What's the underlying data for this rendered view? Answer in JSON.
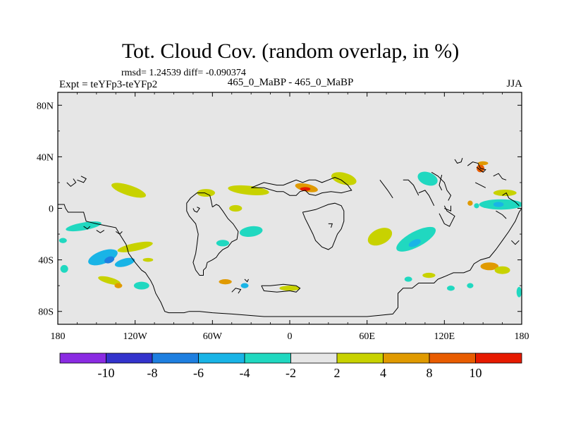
{
  "chart_data": {
    "type": "contour-map",
    "title": "Tot. Cloud Cov. (random overlap, in %)",
    "stats_line": "rmsd= 1.24539 diff= -0.090374",
    "left_label": "Expt = teYFp3-teYFp2",
    "center_label": "465_0_MaBP - 465_0_MaBP",
    "right_label": "JJA",
    "xlim": [
      -180,
      180
    ],
    "ylim": [
      -90,
      90
    ],
    "x_ticks": [
      {
        "value": -180,
        "label": "180"
      },
      {
        "value": -120,
        "label": "120W"
      },
      {
        "value": -60,
        "label": "60W"
      },
      {
        "value": 0,
        "label": "0"
      },
      {
        "value": 60,
        "label": "60E"
      },
      {
        "value": 120,
        "label": "120E"
      },
      {
        "value": 180,
        "label": "180"
      }
    ],
    "y_ticks": [
      {
        "value": 80,
        "label": "80N"
      },
      {
        "value": 40,
        "label": "40N"
      },
      {
        "value": 0,
        "label": "0"
      },
      {
        "value": -40,
        "label": "40S"
      },
      {
        "value": -80,
        "label": "80S"
      }
    ],
    "colorbar": {
      "colors": [
        "#8a2be2",
        "#3333cc",
        "#1e7fe0",
        "#19b4e6",
        "#20d8c0",
        "#e6e6e6",
        "#c8d200",
        "#e09a00",
        "#e85c00",
        "#e61a00"
      ],
      "boundaries": [
        "-10",
        "-8",
        "-6",
        "-4",
        "-2",
        "2",
        "4",
        "8",
        "10"
      ]
    },
    "background_color": "#e6e6e6",
    "anomalies": [
      {
        "lon": -145,
        "lat": -38,
        "rx": 12,
        "ry": 5,
        "rot": 20,
        "level": 3
      },
      {
        "lon": -140,
        "lat": -40,
        "rx": 4,
        "ry": 2.5,
        "rot": 20,
        "level": 2
      },
      {
        "lon": -128,
        "lat": -42,
        "rx": 8,
        "ry": 3,
        "rot": 15,
        "level": 3
      },
      {
        "lon": -160,
        "lat": -14,
        "rx": 14,
        "ry": 3,
        "rot": 10,
        "level": 4
      },
      {
        "lon": -125,
        "lat": 14,
        "rx": 14,
        "ry": 4,
        "rot": -18,
        "level": 6
      },
      {
        "lon": -120,
        "lat": -30,
        "rx": 14,
        "ry": 3,
        "rot": 12,
        "level": 6
      },
      {
        "lon": -140,
        "lat": -56,
        "rx": 9,
        "ry": 2.5,
        "rot": -15,
        "level": 6
      },
      {
        "lon": -133,
        "lat": -60,
        "rx": 3,
        "ry": 2,
        "rot": 0,
        "level": 7
      },
      {
        "lon": -115,
        "lat": -60,
        "rx": 6,
        "ry": 3,
        "rot": 0,
        "level": 4
      },
      {
        "lon": -65,
        "lat": 12,
        "rx": 7,
        "ry": 3,
        "rot": 0,
        "level": 6
      },
      {
        "lon": -32,
        "lat": 14,
        "rx": 16,
        "ry": 3.5,
        "rot": -6,
        "level": 6
      },
      {
        "lon": -42,
        "lat": 0,
        "rx": 5,
        "ry": 2.5,
        "rot": 0,
        "level": 6
      },
      {
        "lon": -30,
        "lat": -18,
        "rx": 9,
        "ry": 4,
        "rot": 8,
        "level": 4
      },
      {
        "lon": -52,
        "lat": -27,
        "rx": 5,
        "ry": 2.5,
        "rot": 0,
        "level": 4
      },
      {
        "lon": -50,
        "lat": -57,
        "rx": 5,
        "ry": 2,
        "rot": 0,
        "level": 7
      },
      {
        "lon": -35,
        "lat": -60,
        "rx": 3,
        "ry": 2,
        "rot": 0,
        "level": 3
      },
      {
        "lon": 0,
        "lat": -62,
        "rx": 8,
        "ry": 2,
        "rot": 0,
        "level": 6
      },
      {
        "lon": 13,
        "lat": 16,
        "rx": 9,
        "ry": 3,
        "rot": -12,
        "level": 7
      },
      {
        "lon": 12,
        "lat": 15,
        "rx": 4,
        "ry": 1.5,
        "rot": 0,
        "level": 9
      },
      {
        "lon": 42,
        "lat": 23,
        "rx": 10,
        "ry": 4.5,
        "rot": -15,
        "level": 6
      },
      {
        "lon": 70,
        "lat": -22,
        "rx": 10,
        "ry": 6,
        "rot": 25,
        "level": 6
      },
      {
        "lon": 98,
        "lat": -24,
        "rx": 17,
        "ry": 6,
        "rot": 28,
        "level": 4
      },
      {
        "lon": 97,
        "lat": -27,
        "rx": 5,
        "ry": 2.5,
        "rot": 25,
        "level": 3
      },
      {
        "lon": 107,
        "lat": 23,
        "rx": 8,
        "ry": 5,
        "rot": -20,
        "level": 4
      },
      {
        "lon": 164,
        "lat": 3,
        "rx": 17,
        "ry": 4,
        "rot": 0,
        "level": 4
      },
      {
        "lon": 162,
        "lat": 3,
        "rx": 4,
        "ry": 2,
        "rot": 0,
        "level": 3
      },
      {
        "lon": 167,
        "lat": 12,
        "rx": 9,
        "ry": 2.5,
        "rot": 0,
        "level": 6
      },
      {
        "lon": 140,
        "lat": 4,
        "rx": 2,
        "ry": 2,
        "rot": 0,
        "level": 7
      },
      {
        "lon": 145,
        "lat": 2,
        "rx": 2,
        "ry": 2,
        "rot": 0,
        "level": 4
      },
      {
        "lon": 148,
        "lat": 31,
        "rx": 3,
        "ry": 3,
        "rot": 0,
        "level": 8
      },
      {
        "lon": 150,
        "lat": 35,
        "rx": 4,
        "ry": 1.5,
        "rot": 0,
        "level": 7
      },
      {
        "lon": 155,
        "lat": -45,
        "rx": 7,
        "ry": 3,
        "rot": 0,
        "level": 7
      },
      {
        "lon": 165,
        "lat": -48,
        "rx": 6,
        "ry": 3,
        "rot": 0,
        "level": 6
      },
      {
        "lon": 108,
        "lat": -52,
        "rx": 5,
        "ry": 2,
        "rot": 0,
        "level": 6
      },
      {
        "lon": 125,
        "lat": -62,
        "rx": 3,
        "ry": 2,
        "rot": 0,
        "level": 4
      },
      {
        "lon": 140,
        "lat": -60,
        "rx": 2.5,
        "ry": 2,
        "rot": 0,
        "level": 4
      },
      {
        "lon": 178,
        "lat": -65,
        "rx": 2,
        "ry": 4,
        "rot": 0,
        "level": 4
      },
      {
        "lon": 92,
        "lat": -55,
        "rx": 3,
        "ry": 2,
        "rot": 0,
        "level": 4
      },
      {
        "lon": -176,
        "lat": -25,
        "rx": 3,
        "ry": 2,
        "rot": 0,
        "level": 4
      },
      {
        "lon": -175,
        "lat": -47,
        "rx": 3,
        "ry": 3,
        "rot": 0,
        "level": 4
      },
      {
        "lon": -110,
        "lat": -40,
        "rx": 4,
        "ry": 1.5,
        "rot": 0,
        "level": 6
      }
    ],
    "coastlines": [
      [
        [
          -173,
          20
        ],
        [
          -170,
          17
        ],
        [
          -166,
          20
        ],
        [
          -168,
          23
        ]
      ],
      [
        [
          -165,
          22
        ],
        [
          -160,
          20
        ],
        [
          -158,
          23
        ],
        [
          -162,
          25
        ]
      ],
      [
        [
          -180,
          3
        ],
        [
          -175,
          3
        ],
        [
          -174,
          0
        ],
        [
          -172,
          -3
        ],
        [
          -160,
          -3
        ],
        [
          -158,
          -10
        ],
        [
          -150,
          -12
        ],
        [
          -140,
          -14
        ],
        [
          -135,
          -15
        ],
        [
          -132,
          -20
        ],
        [
          -127,
          -28
        ],
        [
          -125,
          -35
        ],
        [
          -120,
          -42
        ],
        [
          -115,
          -48
        ],
        [
          -112,
          -50
        ],
        [
          -110,
          -53
        ],
        [
          -108,
          -56
        ],
        [
          -106,
          -60
        ],
        [
          -104,
          -66
        ],
        [
          -100,
          -73
        ],
        [
          -97,
          -80
        ],
        [
          -94,
          -81
        ],
        [
          -82,
          -81
        ],
        [
          -78,
          -80
        ],
        [
          -70,
          -80
        ],
        [
          -60,
          -81
        ],
        [
          -45,
          -82
        ],
        [
          -20,
          -84
        ],
        [
          0,
          -84
        ],
        [
          20,
          -84
        ],
        [
          40,
          -84
        ],
        [
          60,
          -84
        ],
        [
          70,
          -83
        ],
        [
          80,
          -82
        ],
        [
          84,
          -77
        ],
        [
          84,
          -66
        ],
        [
          88,
          -62
        ],
        [
          95,
          -62
        ],
        [
          100,
          -58
        ],
        [
          105,
          -58
        ],
        [
          112,
          -58
        ],
        [
          115,
          -55
        ],
        [
          120,
          -53
        ],
        [
          127,
          -50
        ],
        [
          135,
          -50
        ],
        [
          140,
          -48
        ],
        [
          143,
          -43
        ],
        [
          148,
          -40
        ],
        [
          155,
          -38
        ],
        [
          160,
          -32
        ],
        [
          165,
          -25
        ],
        [
          170,
          -18
        ],
        [
          175,
          -10
        ],
        [
          178,
          -3
        ],
        [
          180,
          0
        ]
      ],
      [
        [
          -160,
          -14
        ],
        [
          -157,
          -16
        ],
        [
          -155,
          -14
        ]
      ],
      [
        [
          -150,
          -17
        ],
        [
          -147,
          -19
        ],
        [
          -144,
          -17
        ]
      ],
      [
        [
          -135,
          -18
        ],
        [
          -132,
          -20
        ],
        [
          -130,
          -18
        ]
      ],
      [
        [
          -60,
          1
        ],
        [
          -57,
          3
        ],
        [
          -55,
          2
        ],
        [
          -52,
          -2
        ],
        [
          -48,
          -8
        ],
        [
          -44,
          -12
        ],
        [
          -40,
          -18
        ],
        [
          -41,
          -24
        ],
        [
          -45,
          -26
        ],
        [
          -48,
          -30
        ],
        [
          -52,
          -32
        ],
        [
          -55,
          -35
        ],
        [
          -57,
          -38
        ],
        [
          -60,
          -40
        ],
        [
          -64,
          -42
        ],
        [
          -65,
          -46
        ],
        [
          -67,
          -48
        ],
        [
          -67,
          -52
        ],
        [
          -70,
          -52
        ],
        [
          -73,
          -48
        ],
        [
          -75,
          -42
        ],
        [
          -73,
          -35
        ],
        [
          -72,
          -28
        ],
        [
          -71,
          -20
        ],
        [
          -73,
          -12
        ],
        [
          -78,
          -6
        ],
        [
          -80,
          -2
        ],
        [
          -80,
          4
        ],
        [
          -77,
          8
        ],
        [
          -72,
          12
        ],
        [
          -66,
          12
        ],
        [
          -62,
          10
        ],
        [
          -61,
          6
        ],
        [
          -60,
          1
        ]
      ],
      [
        [
          -75,
          0
        ],
        [
          -74,
          -2
        ],
        [
          -72,
          -3
        ],
        [
          -70,
          0
        ],
        [
          -72,
          1
        ]
      ],
      [
        [
          -30,
          16
        ],
        [
          -20,
          16
        ],
        [
          -10,
          13
        ],
        [
          -5,
          13
        ],
        [
          0,
          10
        ],
        [
          5,
          10
        ],
        [
          8,
          13
        ],
        [
          12,
          14
        ],
        [
          15,
          11
        ],
        [
          20,
          10
        ],
        [
          25,
          12
        ],
        [
          32,
          13
        ],
        [
          40,
          12
        ],
        [
          44,
          13
        ],
        [
          48,
          14
        ],
        [
          45,
          18
        ],
        [
          40,
          22
        ],
        [
          35,
          24
        ],
        [
          30,
          22
        ],
        [
          25,
          20
        ],
        [
          20,
          22
        ],
        [
          15,
          22
        ],
        [
          10,
          20
        ],
        [
          5,
          22
        ],
        [
          0,
          20
        ],
        [
          -5,
          18
        ],
        [
          -10,
          18
        ],
        [
          -15,
          19
        ],
        [
          -20,
          20
        ],
        [
          -25,
          18
        ],
        [
          -30,
          16
        ]
      ],
      [
        [
          10,
          -3
        ],
        [
          12,
          -8
        ],
        [
          14,
          -12
        ],
        [
          18,
          -20
        ],
        [
          20,
          -25
        ],
        [
          25,
          -30
        ],
        [
          30,
          -32
        ],
        [
          33,
          -30
        ],
        [
          35,
          -25
        ],
        [
          37,
          -20
        ],
        [
          40,
          -16
        ],
        [
          42,
          -10
        ],
        [
          42,
          -2
        ],
        [
          40,
          2
        ],
        [
          35,
          4
        ],
        [
          30,
          3
        ],
        [
          25,
          1
        ],
        [
          20,
          -1
        ],
        [
          15,
          -2
        ],
        [
          10,
          -3
        ]
      ],
      [
        [
          32,
          -15
        ],
        [
          33,
          -12
        ],
        [
          30,
          -12
        ]
      ],
      [
        [
          -35,
          -55
        ],
        [
          -33,
          -57
        ],
        [
          -32,
          -55
        ]
      ],
      [
        [
          -22,
          -60
        ],
        [
          -15,
          -60
        ],
        [
          -5,
          -59
        ],
        [
          5,
          -60
        ],
        [
          8,
          -62
        ],
        [
          5,
          -65
        ],
        [
          0,
          -64
        ],
        [
          -10,
          -65
        ],
        [
          -20,
          -64
        ],
        [
          -22,
          -60
        ]
      ],
      [
        [
          -45,
          -65
        ],
        [
          -42,
          -62
        ],
        [
          -38,
          -63
        ],
        [
          -40,
          -66
        ]
      ],
      [
        [
          80,
          8
        ],
        [
          78,
          11
        ],
        [
          76,
          14
        ],
        [
          73,
          18
        ],
        [
          70,
          22
        ]
      ],
      [
        [
          88,
          22
        ],
        [
          92,
          22
        ],
        [
          96,
          18
        ],
        [
          98,
          14
        ],
        [
          100,
          10
        ]
      ],
      [
        [
          100,
          12
        ],
        [
          105,
          14
        ],
        [
          108,
          10
        ],
        [
          110,
          6
        ],
        [
          112,
          2
        ]
      ],
      [
        [
          110,
          28
        ],
        [
          115,
          25
        ],
        [
          118,
          22
        ],
        [
          120,
          20
        ],
        [
          122,
          14
        ],
        [
          125,
          10
        ],
        [
          123,
          6
        ]
      ],
      [
        [
          120,
          2
        ],
        [
          122,
          -2
        ],
        [
          125,
          -4
        ],
        [
          128,
          -6
        ],
        [
          126,
          -10
        ],
        [
          124,
          -14
        ],
        [
          120,
          -12
        ],
        [
          118,
          -8
        ],
        [
          116,
          -4
        ]
      ],
      [
        [
          118,
          26
        ],
        [
          117,
          22
        ],
        [
          116,
          18
        ],
        [
          118,
          14
        ]
      ],
      [
        [
          120,
          0
        ],
        [
          125,
          -2
        ],
        [
          125,
          2
        ]
      ],
      [
        [
          138,
          33
        ],
        [
          142,
          36
        ],
        [
          146,
          35
        ],
        [
          148,
          31
        ],
        [
          152,
          30
        ],
        [
          150,
          28
        ],
        [
          145,
          32
        ]
      ],
      [
        [
          128,
          38
        ],
        [
          130,
          35
        ],
        [
          133,
          36
        ],
        [
          134,
          39
        ]
      ],
      [
        [
          144,
          20
        ],
        [
          148,
          18
        ],
        [
          152,
          16
        ]
      ],
      [
        [
          158,
          25
        ],
        [
          162,
          27
        ],
        [
          165,
          23
        ],
        [
          168,
          22
        ]
      ],
      [
        [
          165,
          10
        ],
        [
          168,
          12
        ],
        [
          170,
          8
        ],
        [
          175,
          5
        ],
        [
          178,
          2
        ]
      ],
      [
        [
          160,
          -2
        ],
        [
          165,
          -5
        ],
        [
          168,
          -8
        ]
      ],
      [
        [
          172,
          -25
        ],
        [
          175,
          -28
        ],
        [
          178,
          -25
        ]
      ]
    ]
  }
}
